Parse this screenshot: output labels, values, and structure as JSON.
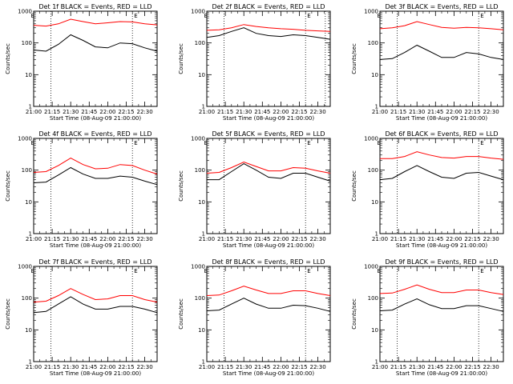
{
  "chart_data": [
    {
      "type": "line",
      "title": "Det 1f BLACK = Events, RED = LLD",
      "marker": "E",
      "xlabel": "Start Time (08-Aug-09 21:00:00)",
      "ylabel": "Counts/sec",
      "yscale": "log",
      "ylim": [
        1,
        1000
      ],
      "xlim": [
        0,
        100
      ],
      "xticks": [
        {
          "v": 0,
          "label": "21:00"
        },
        {
          "v": 15,
          "label": "21:15"
        },
        {
          "v": 30,
          "label": "21:30"
        },
        {
          "v": 45,
          "label": "21:45"
        },
        {
          "v": 60,
          "label": "22:00"
        },
        {
          "v": 75,
          "label": "22:15"
        },
        {
          "v": 90,
          "label": "22:30"
        }
      ],
      "yticks": [
        {
          "v": 1,
          "label": "1"
        },
        {
          "v": 10,
          "label": "10"
        },
        {
          "v": 100,
          "label": "100"
        },
        {
          "v": 1000,
          "label": "1000"
        }
      ],
      "vlines": [
        14,
        80
      ],
      "series": [
        {
          "color": "#ff0000",
          "x": [
            0,
            10,
            20,
            30,
            40,
            50,
            60,
            70,
            80,
            90,
            100
          ],
          "y": [
            360,
            340,
            400,
            560,
            470,
            400,
            430,
            470,
            460,
            400,
            370
          ]
        },
        {
          "color": "#000000",
          "x": [
            0,
            10,
            20,
            30,
            40,
            50,
            60,
            70,
            80,
            90,
            100
          ],
          "y": [
            60,
            55,
            90,
            180,
            120,
            75,
            70,
            100,
            95,
            70,
            55
          ]
        }
      ]
    },
    {
      "type": "line",
      "title": "Det 2f BLACK = Events, RED = LLD",
      "marker": "E",
      "xlabel": "Start Time (08-Aug-09 21:00:00)",
      "ylabel": "Counts/sec",
      "yscale": "log",
      "ylim": [
        1,
        1000
      ],
      "xlim": [
        0,
        100
      ],
      "xticks": [
        {
          "v": 0,
          "label": "21:00"
        },
        {
          "v": 15,
          "label": "21:15"
        },
        {
          "v": 30,
          "label": "21:30"
        },
        {
          "v": 45,
          "label": "21:45"
        },
        {
          "v": 60,
          "label": "22:00"
        },
        {
          "v": 75,
          "label": "22:15"
        },
        {
          "v": 90,
          "label": "22:30"
        }
      ],
      "yticks": [
        {
          "v": 1,
          "label": "1"
        },
        {
          "v": 10,
          "label": "10"
        },
        {
          "v": 100,
          "label": "100"
        },
        {
          "v": 1000,
          "label": "1000"
        }
      ],
      "vlines": [
        14,
        80,
        96
      ],
      "series": [
        {
          "color": "#ff0000",
          "x": [
            0,
            10,
            20,
            30,
            40,
            50,
            60,
            70,
            80,
            90,
            100
          ],
          "y": [
            250,
            260,
            300,
            380,
            330,
            300,
            280,
            270,
            250,
            240,
            230
          ]
        },
        {
          "color": "#000000",
          "x": [
            0,
            10,
            20,
            30,
            40,
            50,
            60,
            70,
            80,
            90,
            100
          ],
          "y": [
            150,
            170,
            230,
            300,
            200,
            170,
            160,
            180,
            170,
            150,
            130
          ]
        }
      ]
    },
    {
      "type": "line",
      "title": "Det 3f BLACK = Events, RED = LLD",
      "marker": "E",
      "xlabel": "Start Time (08-Aug-09 21:00:00)",
      "ylabel": "Counts/sec",
      "yscale": "log",
      "ylim": [
        1,
        1000
      ],
      "xlim": [
        0,
        100
      ],
      "xticks": [
        {
          "v": 0,
          "label": "21:00"
        },
        {
          "v": 15,
          "label": "21:15"
        },
        {
          "v": 30,
          "label": "21:30"
        },
        {
          "v": 45,
          "label": "21:45"
        },
        {
          "v": 60,
          "label": "22:00"
        },
        {
          "v": 75,
          "label": "22:15"
        },
        {
          "v": 90,
          "label": "22:30"
        }
      ],
      "yticks": [
        {
          "v": 1,
          "label": "1"
        },
        {
          "v": 10,
          "label": "10"
        },
        {
          "v": 100,
          "label": "100"
        },
        {
          "v": 1000,
          "label": "1000"
        }
      ],
      "vlines": [
        14,
        80
      ],
      "series": [
        {
          "color": "#ff0000",
          "x": [
            0,
            10,
            20,
            30,
            40,
            50,
            60,
            70,
            80,
            90,
            100
          ],
          "y": [
            280,
            300,
            350,
            470,
            380,
            310,
            290,
            310,
            300,
            280,
            260
          ]
        },
        {
          "color": "#000000",
          "x": [
            0,
            10,
            20,
            30,
            40,
            50,
            60,
            70,
            80,
            90,
            100
          ],
          "y": [
            30,
            32,
            50,
            85,
            55,
            35,
            35,
            50,
            45,
            35,
            30
          ]
        }
      ]
    },
    {
      "type": "line",
      "title": "Det 4f BLACK = Events, RED = LLD",
      "marker": "E",
      "xlabel": "Start Time (08-Aug-09 21:00:00)",
      "ylabel": "Counts/sec",
      "yscale": "log",
      "ylim": [
        1,
        1000
      ],
      "xlim": [
        0,
        100
      ],
      "xticks": [
        {
          "v": 0,
          "label": "21:00"
        },
        {
          "v": 15,
          "label": "21:15"
        },
        {
          "v": 30,
          "label": "21:30"
        },
        {
          "v": 45,
          "label": "21:45"
        },
        {
          "v": 60,
          "label": "22:00"
        },
        {
          "v": 75,
          "label": "22:15"
        },
        {
          "v": 90,
          "label": "22:30"
        }
      ],
      "yticks": [
        {
          "v": 1,
          "label": "1"
        },
        {
          "v": 10,
          "label": "10"
        },
        {
          "v": 100,
          "label": "100"
        },
        {
          "v": 1000,
          "label": "1000"
        }
      ],
      "vlines": [
        14,
        80
      ],
      "series": [
        {
          "color": "#ff0000",
          "x": [
            0,
            10,
            20,
            30,
            40,
            50,
            60,
            70,
            80,
            90,
            100
          ],
          "y": [
            85,
            90,
            140,
            240,
            150,
            110,
            115,
            150,
            140,
            100,
            75
          ]
        },
        {
          "color": "#000000",
          "x": [
            0,
            10,
            20,
            30,
            40,
            50,
            60,
            70,
            80,
            90,
            100
          ],
          "y": [
            40,
            42,
            70,
            120,
            75,
            55,
            55,
            65,
            60,
            45,
            35
          ]
        }
      ]
    },
    {
      "type": "line",
      "title": "Det 5f BLACK = Events, RED = LLD",
      "marker": "E",
      "xlabel": "Start Time (08-Aug-09 21:00:00)",
      "ylabel": "Counts/sec",
      "yscale": "log",
      "ylim": [
        1,
        1000
      ],
      "xlim": [
        0,
        100
      ],
      "xticks": [
        {
          "v": 0,
          "label": "21:00"
        },
        {
          "v": 15,
          "label": "21:15"
        },
        {
          "v": 30,
          "label": "21:30"
        },
        {
          "v": 45,
          "label": "21:45"
        },
        {
          "v": 60,
          "label": "22:00"
        },
        {
          "v": 75,
          "label": "22:15"
        },
        {
          "v": 90,
          "label": "22:30"
        }
      ],
      "yticks": [
        {
          "v": 1,
          "label": "1"
        },
        {
          "v": 10,
          "label": "10"
        },
        {
          "v": 100,
          "label": "100"
        },
        {
          "v": 1000,
          "label": "1000"
        }
      ],
      "vlines": [
        14,
        80
      ],
      "series": [
        {
          "color": "#ff0000",
          "x": [
            0,
            10,
            20,
            30,
            40,
            50,
            60,
            70,
            80,
            90,
            100
          ],
          "y": [
            80,
            85,
            120,
            180,
            130,
            95,
            95,
            120,
            115,
            95,
            80
          ]
        },
        {
          "color": "#000000",
          "x": [
            0,
            10,
            20,
            30,
            40,
            50,
            60,
            70,
            80,
            90,
            100
          ],
          "y": [
            50,
            50,
            90,
            160,
            100,
            60,
            55,
            80,
            80,
            60,
            45
          ]
        }
      ]
    },
    {
      "type": "line",
      "title": "Det 6f BLACK = Events, RED = LLD",
      "marker": "E",
      "xlabel": "Start Time (08-Aug-09 21:00:00)",
      "ylabel": "Counts/sec",
      "yscale": "log",
      "ylim": [
        1,
        1000
      ],
      "xlim": [
        0,
        100
      ],
      "xticks": [
        {
          "v": 0,
          "label": "21:00"
        },
        {
          "v": 15,
          "label": "21:15"
        },
        {
          "v": 30,
          "label": "21:30"
        },
        {
          "v": 45,
          "label": "21:45"
        },
        {
          "v": 60,
          "label": "22:00"
        },
        {
          "v": 75,
          "label": "22:15"
        },
        {
          "v": 90,
          "label": "22:30"
        }
      ],
      "yticks": [
        {
          "v": 1,
          "label": "1"
        },
        {
          "v": 10,
          "label": "10"
        },
        {
          "v": 100,
          "label": "100"
        },
        {
          "v": 1000,
          "label": "1000"
        }
      ],
      "vlines": [
        14,
        80
      ],
      "series": [
        {
          "color": "#ff0000",
          "x": [
            0,
            10,
            20,
            30,
            40,
            50,
            60,
            70,
            80,
            90,
            100
          ],
          "y": [
            230,
            230,
            270,
            380,
            300,
            250,
            240,
            270,
            270,
            240,
            220
          ]
        },
        {
          "color": "#000000",
          "x": [
            0,
            10,
            20,
            30,
            40,
            50,
            60,
            70,
            80,
            90,
            100
          ],
          "y": [
            50,
            55,
            90,
            140,
            90,
            60,
            55,
            80,
            85,
            65,
            50
          ]
        }
      ]
    },
    {
      "type": "line",
      "title": "Det 7f BLACK = Events, RED = LLD",
      "marker": "E",
      "xlabel": "Start Time (08-Aug-09 21:00:00)",
      "ylabel": "Counts/sec",
      "yscale": "log",
      "ylim": [
        1,
        1000
      ],
      "xlim": [
        0,
        100
      ],
      "xticks": [
        {
          "v": 0,
          "label": "21:00"
        },
        {
          "v": 15,
          "label": "21:15"
        },
        {
          "v": 30,
          "label": "21:30"
        },
        {
          "v": 45,
          "label": "21:45"
        },
        {
          "v": 60,
          "label": "22:00"
        },
        {
          "v": 75,
          "label": "22:15"
        },
        {
          "v": 90,
          "label": "22:30"
        }
      ],
      "yticks": [
        {
          "v": 1,
          "label": "1"
        },
        {
          "v": 10,
          "label": "10"
        },
        {
          "v": 100,
          "label": "100"
        },
        {
          "v": 1000,
          "label": "1000"
        }
      ],
      "vlines": [
        14,
        80
      ],
      "series": [
        {
          "color": "#ff0000",
          "x": [
            0,
            10,
            20,
            30,
            40,
            50,
            60,
            70,
            80,
            90,
            100
          ],
          "y": [
            75,
            80,
            120,
            200,
            130,
            90,
            95,
            120,
            120,
            90,
            75
          ]
        },
        {
          "color": "#000000",
          "x": [
            0,
            10,
            20,
            30,
            40,
            50,
            60,
            70,
            80,
            90,
            100
          ],
          "y": [
            35,
            38,
            65,
            110,
            65,
            45,
            45,
            55,
            55,
            45,
            35
          ]
        }
      ]
    },
    {
      "type": "line",
      "title": "Det 8f BLACK = Events, RED = LLD",
      "marker": "E",
      "xlabel": "Start Time (08-Aug-09 21:00:00)",
      "ylabel": "Counts/sec",
      "yscale": "log",
      "ylim": [
        1,
        1000
      ],
      "xlim": [
        0,
        100
      ],
      "xticks": [
        {
          "v": 0,
          "label": "21:00"
        },
        {
          "v": 15,
          "label": "21:15"
        },
        {
          "v": 30,
          "label": "21:30"
        },
        {
          "v": 45,
          "label": "21:45"
        },
        {
          "v": 60,
          "label": "22:00"
        },
        {
          "v": 75,
          "label": "22:15"
        },
        {
          "v": 90,
          "label": "22:30"
        }
      ],
      "yticks": [
        {
          "v": 1,
          "label": "1"
        },
        {
          "v": 10,
          "label": "10"
        },
        {
          "v": 100,
          "label": "100"
        },
        {
          "v": 1000,
          "label": "1000"
        }
      ],
      "vlines": [
        14,
        80
      ],
      "series": [
        {
          "color": "#ff0000",
          "x": [
            0,
            10,
            20,
            30,
            40,
            50,
            60,
            70,
            80,
            90,
            100
          ],
          "y": [
            120,
            125,
            170,
            240,
            180,
            140,
            140,
            170,
            170,
            140,
            120
          ]
        },
        {
          "color": "#000000",
          "x": [
            0,
            10,
            20,
            30,
            40,
            50,
            60,
            70,
            80,
            90,
            100
          ],
          "y": [
            40,
            42,
            65,
            100,
            65,
            48,
            48,
            60,
            58,
            48,
            38
          ]
        }
      ]
    },
    {
      "type": "line",
      "title": "Det 9f BLACK = Events, RED = LLD",
      "marker": "E",
      "xlabel": "Start Time (08-Aug-09 21:00:00)",
      "ylabel": "Counts/sec",
      "yscale": "log",
      "ylim": [
        1,
        1000
      ],
      "xlim": [
        0,
        100
      ],
      "xticks": [
        {
          "v": 0,
          "label": "21:00"
        },
        {
          "v": 15,
          "label": "21:15"
        },
        {
          "v": 30,
          "label": "21:30"
        },
        {
          "v": 45,
          "label": "21:45"
        },
        {
          "v": 60,
          "label": "22:00"
        },
        {
          "v": 75,
          "label": "22:15"
        },
        {
          "v": 90,
          "label": "22:30"
        }
      ],
      "yticks": [
        {
          "v": 1,
          "label": "1"
        },
        {
          "v": 10,
          "label": "10"
        },
        {
          "v": 100,
          "label": "100"
        },
        {
          "v": 1000,
          "label": "1000"
        }
      ],
      "vlines": [
        14,
        80
      ],
      "series": [
        {
          "color": "#ff0000",
          "x": [
            0,
            10,
            20,
            30,
            40,
            50,
            60,
            70,
            80,
            90,
            100
          ],
          "y": [
            140,
            145,
            190,
            260,
            190,
            150,
            150,
            180,
            180,
            150,
            130
          ]
        },
        {
          "color": "#000000",
          "x": [
            0,
            10,
            20,
            30,
            40,
            50,
            60,
            70,
            80,
            90,
            100
          ],
          "y": [
            40,
            42,
            65,
            95,
            62,
            47,
            47,
            58,
            58,
            47,
            38
          ]
        }
      ]
    }
  ]
}
